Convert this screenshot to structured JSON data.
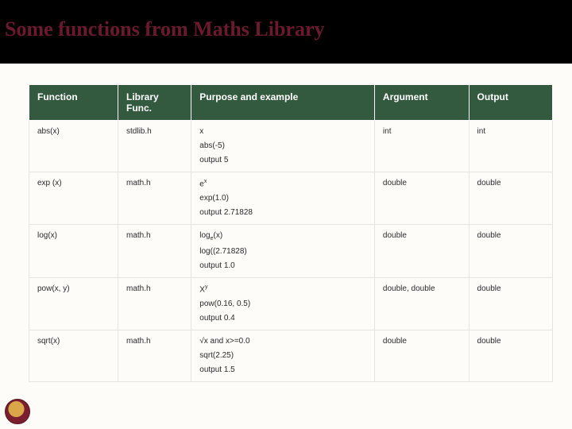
{
  "slide": {
    "title": "Some functions from Maths Library",
    "header_bg": "#000000",
    "title_color": "#6b1a2e",
    "table_header_bg": "#335a3f",
    "table_header_fg": "#ffffff",
    "cell_border": "#e6e4de",
    "page_bg": "#fdfcf9"
  },
  "table": {
    "columns": [
      {
        "label": "Function",
        "width": "17%"
      },
      {
        "label": "Library Func.",
        "width": "14%"
      },
      {
        "label": "Purpose and example",
        "width": "35%"
      },
      {
        "label": "Argument",
        "width": "18%"
      },
      {
        "label": "Output",
        "width": "16%"
      }
    ],
    "rows": [
      {
        "func": "abs(x)",
        "lib": "stdlib.h",
        "purpose": [
          "x",
          "abs(-5)",
          "output 5"
        ],
        "arg": "int",
        "out": "int"
      },
      {
        "func": "exp (x)",
        "lib": "math.h",
        "purpose_html": [
          "e<sup>x</sup>",
          "exp(1.0)",
          "output 2.71828"
        ],
        "arg": "double",
        "out": "double"
      },
      {
        "func": "log(x)",
        "lib": "math.h",
        "purpose_html": [
          "log<sub>e</sub>(x)",
          "log((2.71828)",
          "output 1.0"
        ],
        "arg": "double",
        "out": "double"
      },
      {
        "func": "pow(x, y)",
        "lib": "math.h",
        "purpose_html": [
          "X<sup>y</sup>",
          "pow(0.16, 0.5)",
          "output 0.4"
        ],
        "arg": "double, double",
        "out": "double"
      },
      {
        "func": "sqrt(x)",
        "lib": "math.h",
        "purpose_html": [
          "√x and x>=0.0",
          "sqrt(2.25)",
          "output 1.5"
        ],
        "arg": "double",
        "out": "double"
      }
    ]
  }
}
